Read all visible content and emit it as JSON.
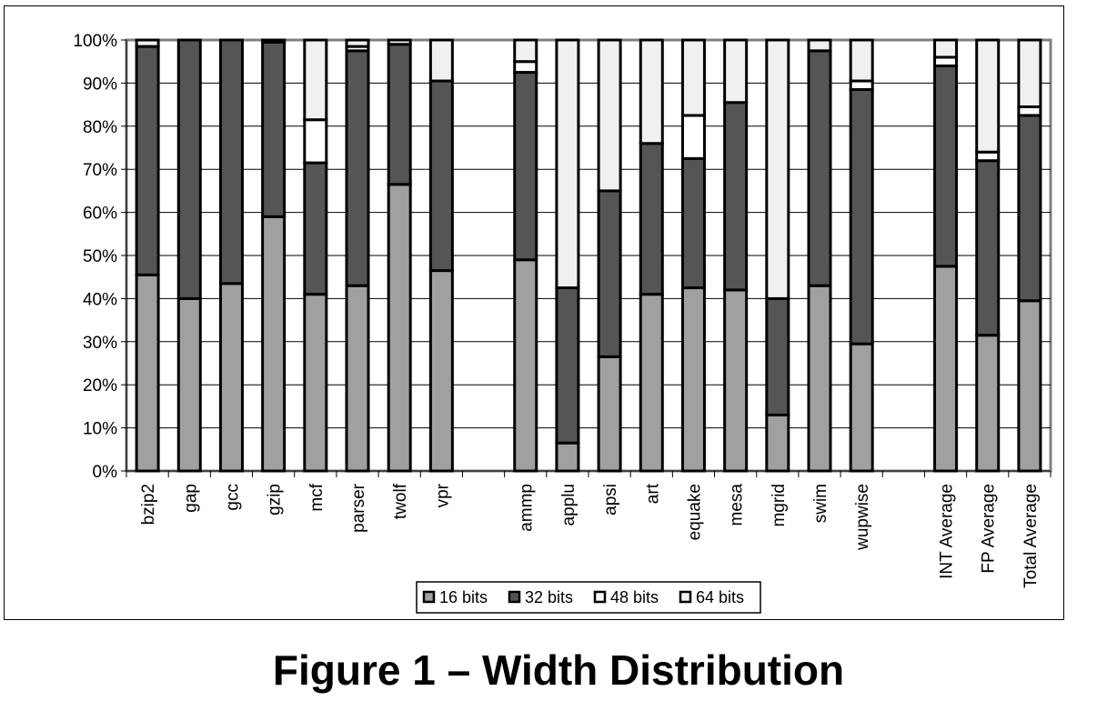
{
  "figure": {
    "caption": "Figure 1 – Width Distribution"
  },
  "chart_data": {
    "type": "bar",
    "stacked": true,
    "percent": true,
    "categories": [
      "bzip2",
      "gap",
      "gcc",
      "gzip",
      "mcf",
      "parser",
      "twolf",
      "vpr",
      "",
      "ammp",
      "applu",
      "apsi",
      "art",
      "equake",
      "mesa",
      "mgrid",
      "swim",
      "wupwise",
      "",
      "INT Average",
      "FP Average",
      "Total Average"
    ],
    "series": [
      {
        "name": "16 bits",
        "color": "#a0a0a0",
        "values": [
          45.5,
          40,
          43.5,
          59,
          41,
          43,
          66.5,
          46.5,
          null,
          49,
          6.5,
          26.5,
          41,
          42.5,
          42,
          13,
          43,
          29.5,
          null,
          47.5,
          31.5,
          39.5
        ]
      },
      {
        "name": "32 bits",
        "color": "#555555",
        "values": [
          53,
          60,
          56.5,
          40.5,
          30.5,
          54.5,
          32.5,
          44,
          null,
          43.5,
          36,
          38.5,
          35,
          30,
          43.5,
          27,
          54.5,
          59,
          null,
          46.5,
          40.5,
          43
        ]
      },
      {
        "name": "48 bits",
        "color": "#ffffff",
        "values": [
          0,
          0,
          0,
          0,
          10,
          1,
          0,
          0,
          null,
          2.5,
          0,
          0,
          0,
          10,
          0,
          0,
          0,
          2,
          null,
          2,
          2,
          2
        ]
      },
      {
        "name": "64 bits",
        "color": "#f0f0f0",
        "values": [
          1.5,
          0,
          0,
          0.5,
          18.5,
          1.5,
          1,
          9.5,
          null,
          5,
          57.5,
          35,
          24,
          17.5,
          14.5,
          60,
          2.5,
          9.5,
          null,
          4,
          26,
          15.5
        ]
      }
    ],
    "y_ticks": [
      "0%",
      "10%",
      "20%",
      "30%",
      "40%",
      "50%",
      "60%",
      "70%",
      "80%",
      "90%",
      "100%"
    ],
    "ylim": [
      0,
      100
    ],
    "grid": true,
    "legend_position": "bottom"
  }
}
